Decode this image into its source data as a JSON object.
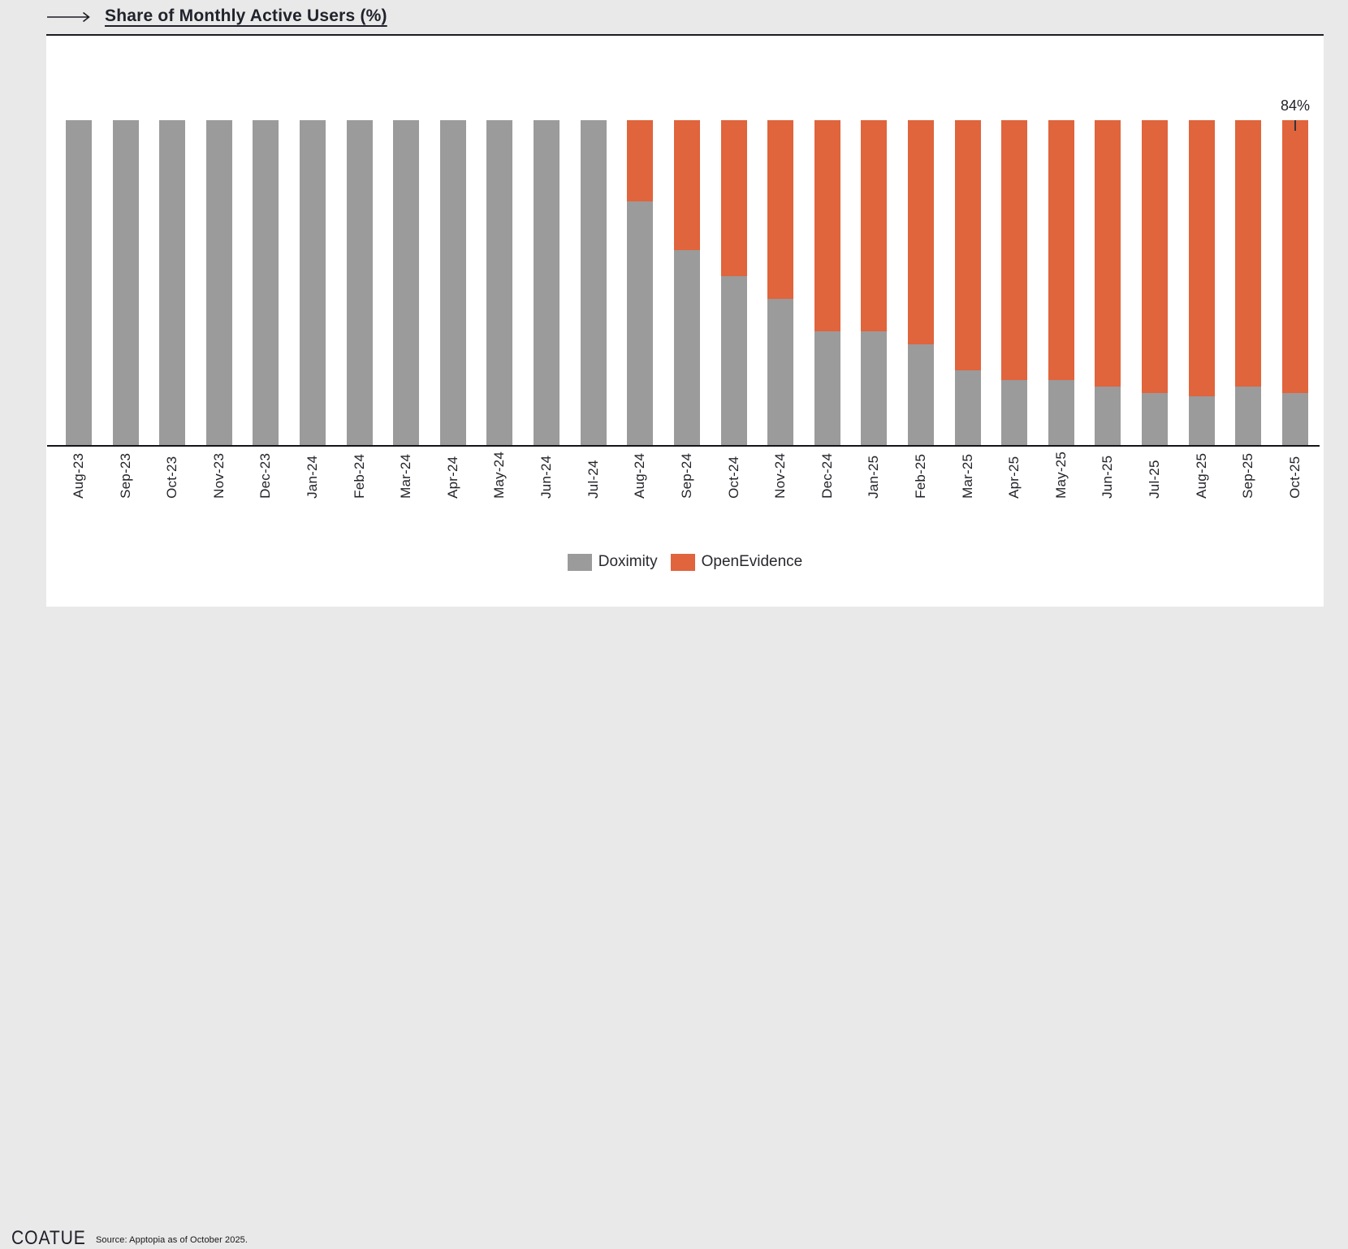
{
  "page": {
    "background_color": "#e9e9e9",
    "card_color": "#ffffff"
  },
  "header": {
    "title": "Share of Monthly Active Users (%)",
    "arrow_icon": "right-arrow"
  },
  "chart_data": {
    "type": "bar",
    "subtype": "stacked-100-percent-column",
    "title": "Share of Monthly Active Users (%)",
    "xlabel": "",
    "ylabel": "",
    "ylim": [
      0,
      100
    ],
    "grid": false,
    "legend_position": "bottom",
    "categories": [
      "Aug-23",
      "Sep-23",
      "Oct-23",
      "Nov-23",
      "Dec-23",
      "Jan-24",
      "Feb-24",
      "Mar-24",
      "Apr-24",
      "May-24",
      "Jun-24",
      "Jul-24",
      "Aug-24",
      "Sep-24",
      "Oct-24",
      "Nov-24",
      "Dec-24",
      "Jan-25",
      "Feb-25",
      "Mar-25",
      "Apr-25",
      "May-25",
      "Jun-25",
      "Jul-25",
      "Aug-25",
      "Sep-25",
      "Oct-25"
    ],
    "series": [
      {
        "name": "Doximity",
        "color": "#9B9B9B",
        "values": [
          100,
          100,
          100,
          100,
          100,
          100,
          100,
          100,
          100,
          100,
          100,
          100,
          75,
          60,
          52,
          45,
          35,
          35,
          31,
          23,
          20,
          20,
          18,
          16,
          15,
          18,
          16
        ]
      },
      {
        "name": "OpenEvidence",
        "color": "#E0643C",
        "values": [
          0,
          0,
          0,
          0,
          0,
          0,
          0,
          0,
          0,
          0,
          0,
          0,
          25,
          40,
          48,
          55,
          65,
          65,
          69,
          77,
          80,
          80,
          82,
          84,
          85,
          82,
          84
        ]
      }
    ],
    "annotation": {
      "label": "84%",
      "category": "Oct-25",
      "series": "OpenEvidence"
    }
  },
  "legend": {
    "items": [
      {
        "label": "Doximity",
        "color": "#9B9B9B"
      },
      {
        "label": "OpenEvidence",
        "color": "#E0643C"
      }
    ]
  },
  "footer": {
    "logo": "COATUE",
    "source": "Source: Apptopia as of October 2025."
  }
}
